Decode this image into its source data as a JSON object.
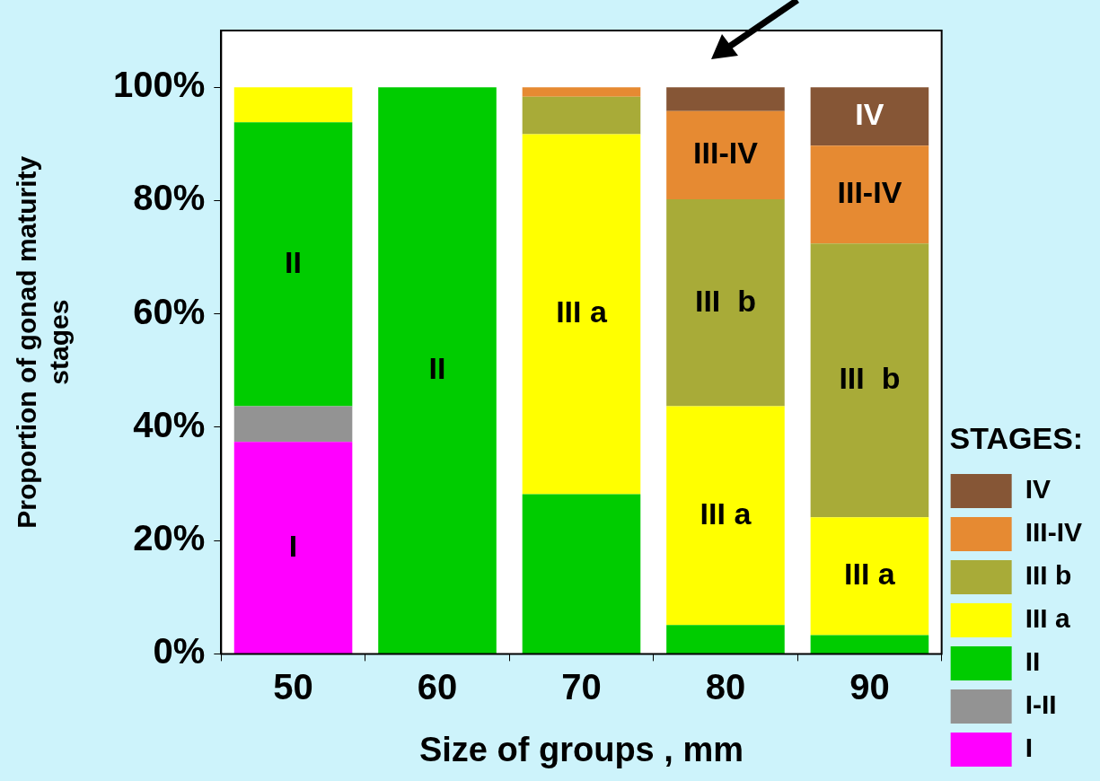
{
  "chart_data": {
    "type": "bar",
    "stacked": true,
    "xlabel": "Size of groups , mm",
    "ylabel": "Proportion of gonad maturity stages",
    "legend_title": "STAGES:",
    "legend": "bottom right",
    "categories": [
      "50",
      "60",
      "70",
      "80",
      "90"
    ],
    "series": [
      {
        "name": "I",
        "color": "#ff00ff",
        "values": [
          37.4,
          0,
          0,
          0,
          0
        ],
        "value_labels": [
          "I",
          null,
          null,
          null,
          null
        ]
      },
      {
        "name": "I-II",
        "color": "#939393",
        "values": [
          6.3,
          0,
          0,
          0,
          0
        ]
      },
      {
        "name": "II",
        "color": "#00cc00",
        "values": [
          50.1,
          100,
          28.2,
          5.1,
          3.3
        ],
        "value_labels": [
          "II",
          "II",
          null,
          null,
          null
        ]
      },
      {
        "name": "III a",
        "color": "#ffff00",
        "values": [
          6.2,
          0,
          63.5,
          38.6,
          20.8
        ],
        "value_labels": [
          null,
          null,
          "III a",
          "III a",
          "III a"
        ]
      },
      {
        "name": "III b",
        "color": "#a8ab38",
        "values": [
          0,
          0,
          6.6,
          36.5,
          48.3
        ],
        "value_labels": [
          null,
          null,
          null,
          "III  b",
          "III  b"
        ]
      },
      {
        "name": "III-IV",
        "color": "#e68a32",
        "values": [
          0,
          0,
          1.7,
          15.6,
          17.3
        ],
        "value_labels": [
          null,
          null,
          null,
          "III-IV",
          "III-IV"
        ]
      },
      {
        "name": "IV",
        "color": "#865636",
        "values": [
          0,
          0,
          0,
          4.2,
          10.3
        ],
        "value_labels": [
          null,
          null,
          null,
          null,
          "IV"
        ]
      }
    ],
    "ylim": [
      0,
      110
    ],
    "yticks": [
      {
        "value": 0,
        "label": "0%"
      },
      {
        "value": 20,
        "label": "20%"
      },
      {
        "value": 40,
        "label": "40%"
      },
      {
        "value": 60,
        "label": "60%"
      },
      {
        "value": 80,
        "label": "80%"
      },
      {
        "value": 100,
        "label": "100%"
      }
    ]
  }
}
